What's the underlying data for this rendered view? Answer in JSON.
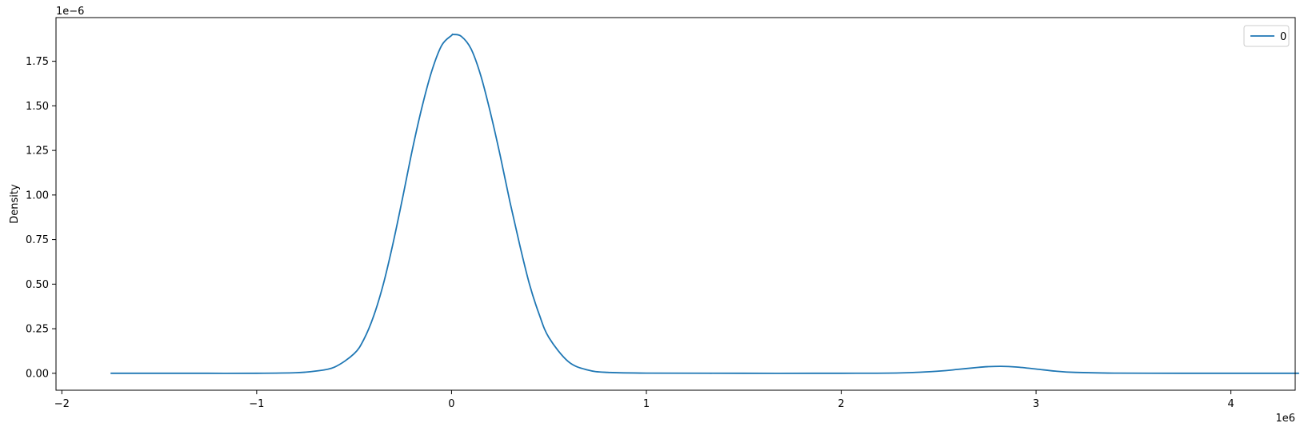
{
  "chart_data": {
    "type": "line",
    "title": "",
    "xlabel": "",
    "ylabel": "Density",
    "x_offset_label": "1e6",
    "y_offset_label": "1e−6",
    "xlim": [
      -2.03,
      4.33
    ],
    "ylim": [
      -0.095,
      1.995
    ],
    "x_ticks": [
      {
        "value": -2,
        "label": "−2"
      },
      {
        "value": -1,
        "label": "−1"
      },
      {
        "value": 0,
        "label": "0"
      },
      {
        "value": 1,
        "label": "1"
      },
      {
        "value": 2,
        "label": "2"
      },
      {
        "value": 3,
        "label": "3"
      },
      {
        "value": 4,
        "label": "4"
      }
    ],
    "y_ticks": [
      {
        "value": 0.0,
        "label": "0.00"
      },
      {
        "value": 0.25,
        "label": "0.25"
      },
      {
        "value": 0.5,
        "label": "0.50"
      },
      {
        "value": 0.75,
        "label": "0.75"
      },
      {
        "value": 1.0,
        "label": "1.00"
      },
      {
        "value": 1.25,
        "label": "1.25"
      },
      {
        "value": 1.5,
        "label": "1.50"
      },
      {
        "value": 1.75,
        "label": "1.75"
      }
    ],
    "grid": false,
    "legend": {
      "position": "top-right",
      "entries": [
        "0"
      ]
    },
    "series": [
      {
        "name": "0",
        "color": "#1f77b4",
        "x": [
          -1.75,
          -1.5,
          -1.25,
          -1.0,
          -0.8,
          -0.7,
          -0.6,
          -0.5,
          -0.45,
          -0.4,
          -0.35,
          -0.3,
          -0.25,
          -0.2,
          -0.15,
          -0.1,
          -0.05,
          0.0,
          0.01,
          0.05,
          0.1,
          0.15,
          0.2,
          0.25,
          0.3,
          0.35,
          0.4,
          0.45,
          0.5,
          0.6,
          0.7,
          0.8,
          1.0,
          1.5,
          2.0,
          2.3,
          2.5,
          2.6,
          2.7,
          2.75,
          2.82,
          2.9,
          3.0,
          3.1,
          3.2,
          3.4,
          3.75,
          4.0,
          4.35
        ],
        "y": [
          0.0,
          0.0,
          0.0,
          0.0,
          0.003,
          0.012,
          0.035,
          0.11,
          0.19,
          0.32,
          0.5,
          0.73,
          0.99,
          1.26,
          1.5,
          1.7,
          1.84,
          1.895,
          1.9,
          1.89,
          1.82,
          1.67,
          1.46,
          1.22,
          0.96,
          0.72,
          0.5,
          0.33,
          0.2,
          0.065,
          0.018,
          0.005,
          0.001,
          0.0,
          0.0,
          0.002,
          0.012,
          0.022,
          0.033,
          0.037,
          0.039,
          0.035,
          0.024,
          0.012,
          0.005,
          0.001,
          0.0,
          0.0,
          0.0
        ]
      }
    ]
  }
}
